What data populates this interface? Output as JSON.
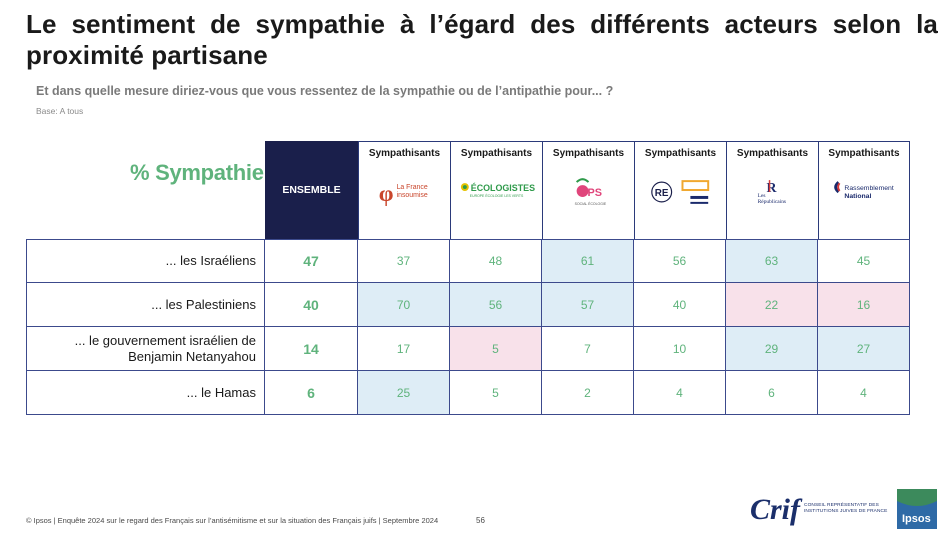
{
  "title": "Le sentiment de sympathie à l’égard des différents acteurs selon la proximité partisane",
  "question": "Et dans quelle mesure diriez-vous que vous ressentez de la sympathie ou de l’antipathie pour... ?",
  "base": "Base: A tous",
  "table_label": "% Sympathie",
  "ensemble_label": "ENSEMBLE",
  "columns": [
    {
      "label": "Sympathisants",
      "party": "La France insoumise",
      "logo_text": "La France insoumise",
      "color": "#c9462c"
    },
    {
      "label": "Sympathisants",
      "party": "Les Écologistes",
      "logo_text": "LES ÉCOLOGISTES",
      "sub": "EUROPE ÉCOLOGIE LES VERTS",
      "color": "#2e9a4a"
    },
    {
      "label": "Sympathisants",
      "party": "Parti socialiste",
      "logo_text": "PS",
      "sub": "SOCIAL ÉCOLOGIE",
      "color": "#e0457b"
    },
    {
      "label": "Sympathisants",
      "party": "Renaissance / Ensemble",
      "logo_text": "RE",
      "color": "#1a1f4b"
    },
    {
      "label": "Sympathisants",
      "party": "Les Républicains",
      "logo_text": "Les Républicains",
      "color": "#1a2a6c"
    },
    {
      "label": "Sympathisants",
      "party": "Rassemblement National",
      "logo_text": "Rassemblement National",
      "color": "#1a2a6c"
    }
  ],
  "rows": [
    {
      "label": "... les Israéliens",
      "ensemble": "47",
      "values": [
        "37",
        "48",
        "61",
        "56",
        "63",
        "45"
      ],
      "highlights": [
        "",
        "",
        "blue",
        "",
        "blue",
        ""
      ]
    },
    {
      "label": "... les Palestiniens",
      "ensemble": "40",
      "values": [
        "70",
        "56",
        "57",
        "40",
        "22",
        "16"
      ],
      "highlights": [
        "blue",
        "blue",
        "blue",
        "",
        "pink",
        "pink"
      ]
    },
    {
      "label": "... le gouvernement israélien de Benjamin Netanyahou",
      "ensemble": "14",
      "values": [
        "17",
        "5",
        "7",
        "10",
        "29",
        "27"
      ],
      "highlights": [
        "",
        "pink",
        "",
        "",
        "blue",
        "blue"
      ]
    },
    {
      "label": "... le Hamas",
      "ensemble": "6",
      "values": [
        "25",
        "5",
        "2",
        "4",
        "6",
        "4"
      ],
      "highlights": [
        "blue",
        "",
        "",
        "",
        "",
        ""
      ]
    }
  ],
  "footer": "© Ipsos | Enquête 2024 sur le regard des Français sur l’antisémitisme et sur la situation des Français juifs | Septembre 2024",
  "page_number": "56",
  "crif": {
    "name": "Crif",
    "tagline": "CONSEIL REPRÉSENTATIF DES INSTITUTIONS JUIVES DE FRANCE"
  },
  "ipsos_logo": "Ipsos",
  "colors": {
    "navy": "#1a1f4b",
    "green": "#5fb37c",
    "blue_highlight": "#deedf6",
    "pink_highlight": "#f8e1ea",
    "grid": "#3c4a8c"
  }
}
